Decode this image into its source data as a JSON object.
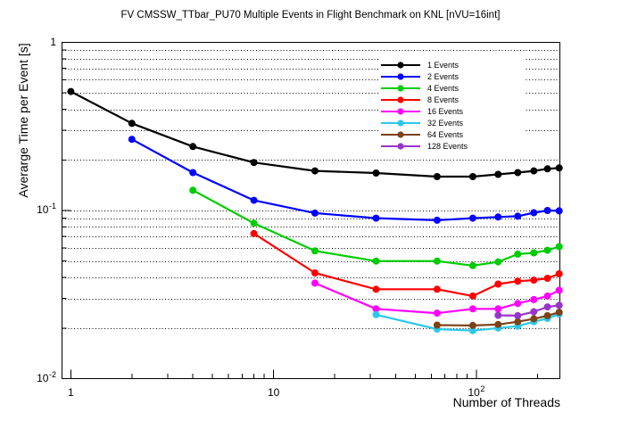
{
  "chart_data": {
    "type": "line",
    "title": "FV CMSSW_TTbar_PU70 Multiple Events in Flight Benchmark on KNL [nVU=16int]",
    "xlabel": "Number of Threads",
    "ylabel": "Averarge Time per Event [s]",
    "x_scale": "log",
    "y_scale": "log",
    "x_range": [
      0.905,
      258
    ],
    "y_range": [
      0.01,
      1.0
    ],
    "grid": "horizontal dotted lines at log subdivisions",
    "legend_position": "top-right-inside",
    "x_ticks": [
      {
        "v": 1,
        "m": "1",
        "e": ""
      },
      {
        "v": 10,
        "m": "10",
        "e": ""
      },
      {
        "v": 100,
        "m": "10",
        "e": "2"
      }
    ],
    "y_ticks": [
      {
        "v": 1,
        "m": "1",
        "e": ""
      },
      {
        "v": 0.1,
        "m": "10",
        "e": "-1"
      },
      {
        "v": 0.01,
        "m": "10",
        "e": "-2"
      }
    ],
    "series": [
      {
        "name": "1 Events",
        "color": "#000000",
        "x": [
          1,
          2,
          4,
          8,
          16,
          32,
          64,
          96,
          128,
          160,
          192,
          224,
          256
        ],
        "y": [
          0.51,
          0.33,
          0.24,
          0.193,
          0.172,
          0.167,
          0.159,
          0.159,
          0.164,
          0.168,
          0.172,
          0.177,
          0.179
        ]
      },
      {
        "name": "2 Events",
        "color": "#0000FF",
        "x": [
          2,
          4,
          8,
          16,
          32,
          64,
          96,
          128,
          160,
          192,
          224,
          256
        ],
        "y": [
          0.265,
          0.168,
          0.115,
          0.0965,
          0.09,
          0.0875,
          0.09,
          0.0915,
          0.0925,
          0.097,
          0.1,
          0.0995
        ]
      },
      {
        "name": "4 Events",
        "color": "#00CC00",
        "x": [
          4,
          8,
          16,
          32,
          64,
          96,
          128,
          160,
          192,
          224,
          256
        ],
        "y": [
          0.132,
          0.084,
          0.0575,
          0.05,
          0.05,
          0.047,
          0.0495,
          0.055,
          0.056,
          0.058,
          0.061
        ]
      },
      {
        "name": "8 Events",
        "color": "#FF0000",
        "x": [
          8,
          16,
          32,
          64,
          96,
          128,
          160,
          192,
          224,
          256
        ],
        "y": [
          0.073,
          0.0425,
          0.034,
          0.034,
          0.031,
          0.0365,
          0.038,
          0.0385,
          0.0395,
          0.042
        ]
      },
      {
        "name": "16 Events",
        "color": "#FF00FF",
        "x": [
          16,
          32,
          64,
          96,
          128,
          160,
          192,
          224,
          256
        ],
        "y": [
          0.037,
          0.026,
          0.0245,
          0.026,
          0.026,
          0.028,
          0.0295,
          0.031,
          0.0335
        ]
      },
      {
        "name": "32 Events",
        "color": "#2BC8EB",
        "x": [
          32,
          64,
          96,
          128,
          160,
          192,
          224,
          256
        ],
        "y": [
          0.024,
          0.0197,
          0.0193,
          0.02,
          0.0205,
          0.0218,
          0.0228,
          0.0242
        ]
      },
      {
        "name": "64 Events",
        "color": "#7D4216",
        "x": [
          64,
          96,
          128,
          160,
          192,
          224,
          256
        ],
        "y": [
          0.0208,
          0.0207,
          0.021,
          0.0218,
          0.0227,
          0.0237,
          0.0248
        ]
      },
      {
        "name": "128 Events",
        "color": "#9933CC",
        "x": [
          128,
          160,
          192,
          224,
          256
        ],
        "y": [
          0.0238,
          0.0237,
          0.025,
          0.0267,
          0.0273
        ]
      }
    ]
  }
}
